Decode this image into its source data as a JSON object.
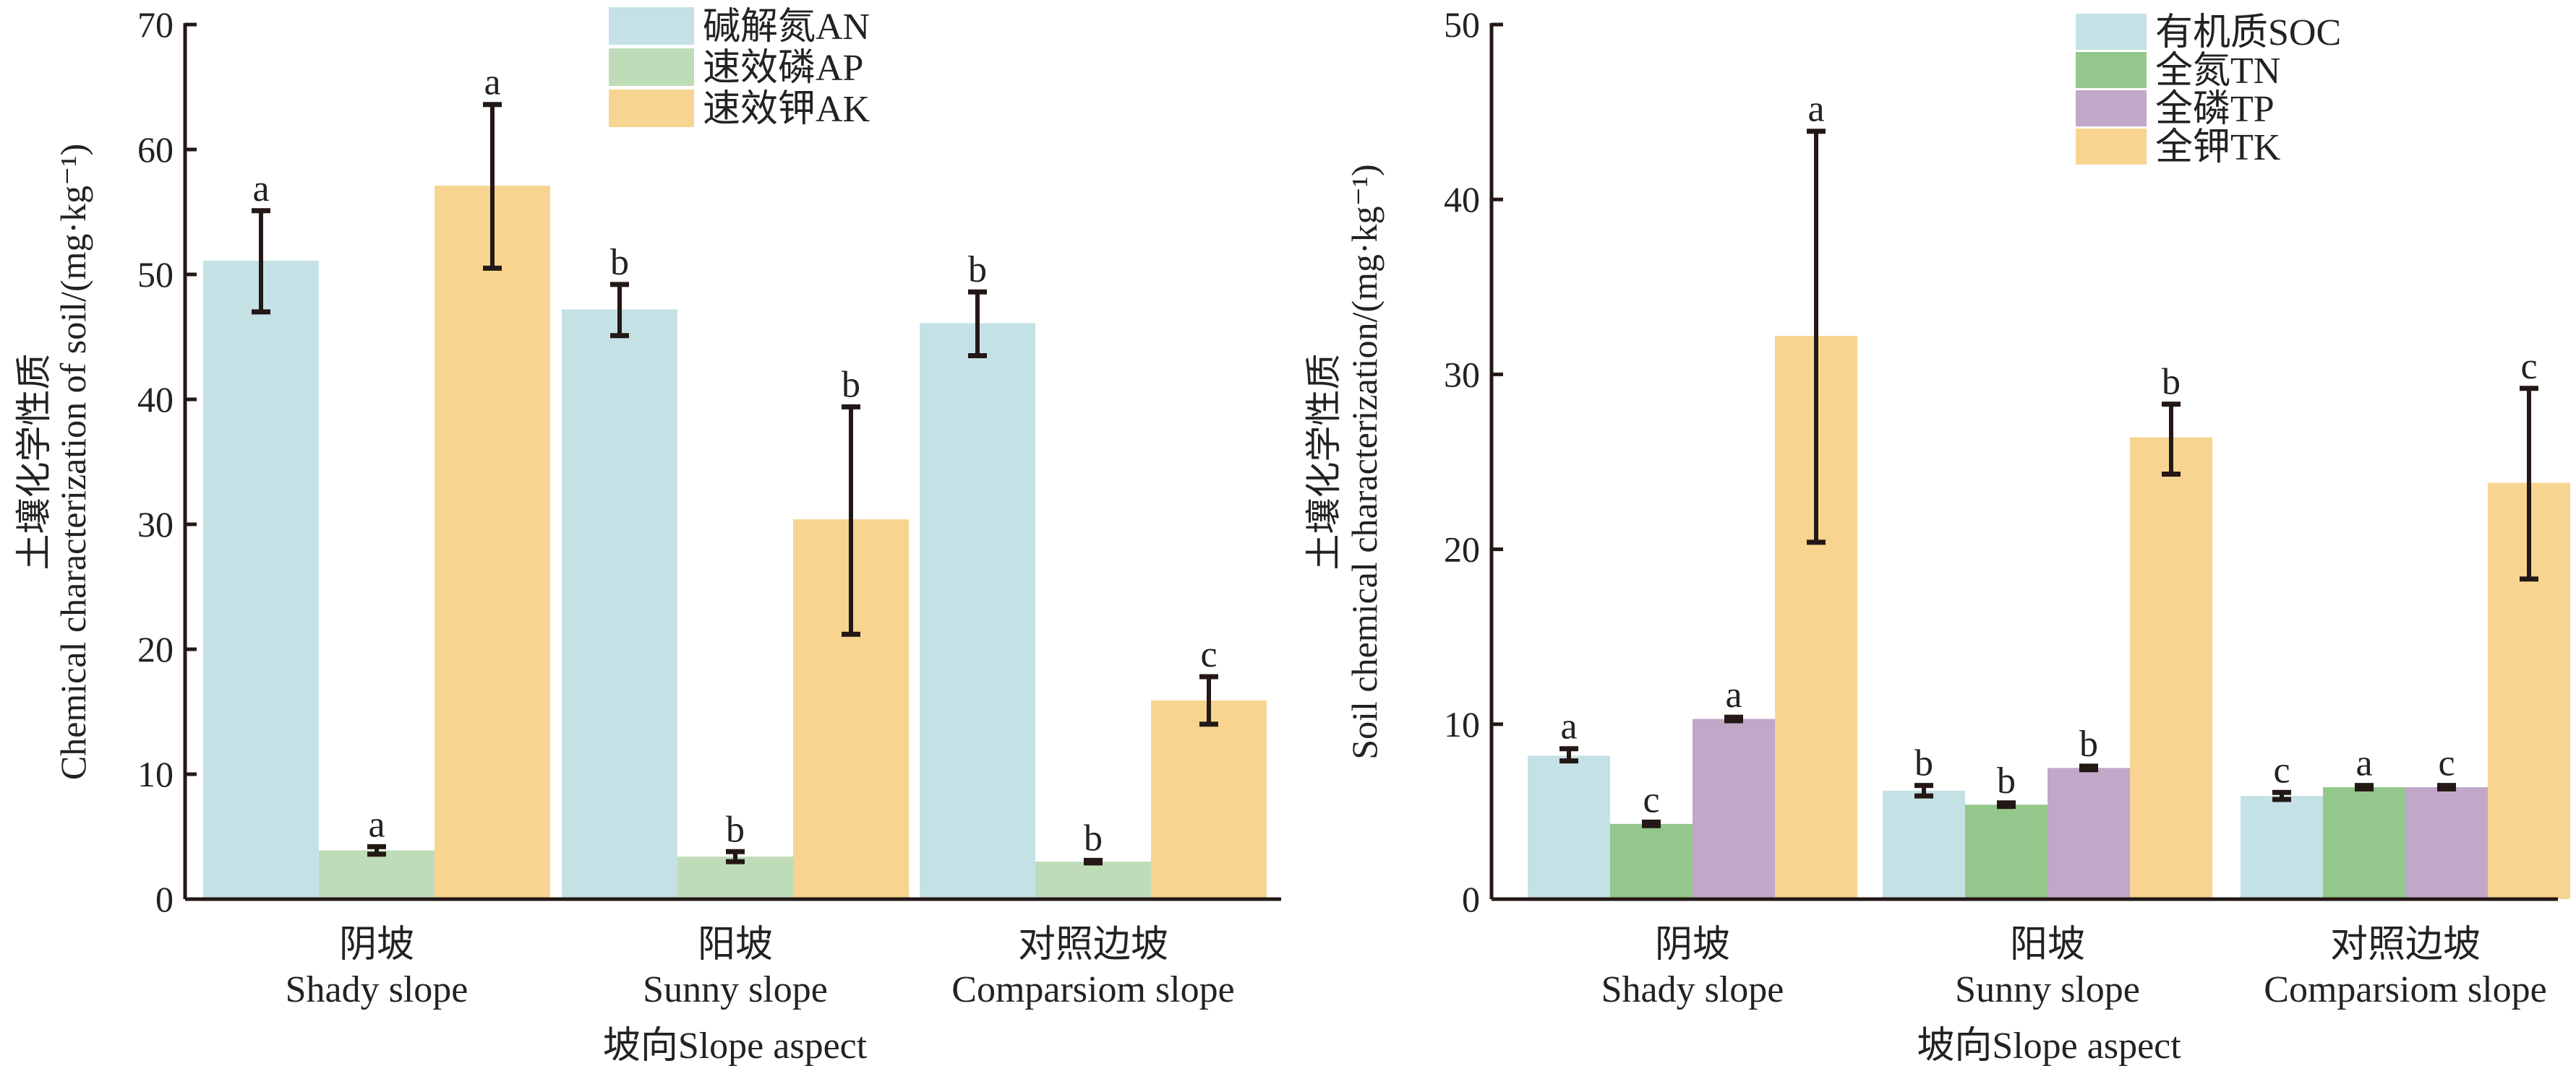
{
  "chart_data": [
    {
      "type": "bar",
      "ylabel_line1": "土壤化学性质",
      "ylabel_line2": "Chemical characterization of soil/(mg·kg⁻¹)",
      "xlabel": "坡向Slope aspect",
      "categories": [
        {
          "cn": "阴坡",
          "en": "Shady slope"
        },
        {
          "cn": "阳坡",
          "en": "Sunny slope"
        },
        {
          "cn": "对照边坡",
          "en": "Comparsiom slope"
        }
      ],
      "ylim": [
        0,
        70
      ],
      "yticks": [
        0,
        10,
        20,
        30,
        40,
        50,
        60,
        70
      ],
      "legend_position": "top-center",
      "series": [
        {
          "name": "碱解氮AN",
          "color": "#c4e2e5",
          "values": [
            51.1,
            47.2,
            46.1
          ],
          "err_low": [
            47.0,
            45.1,
            43.5
          ],
          "err_high": [
            55.1,
            49.2,
            48.6
          ],
          "letters": [
            "a",
            "b",
            "b"
          ]
        },
        {
          "name": "速效磷AP",
          "color": "#bfdcb9",
          "values": [
            3.9,
            3.4,
            3.0
          ],
          "err_low": [
            3.6,
            3.0,
            2.9
          ],
          "err_high": [
            4.2,
            3.8,
            3.1
          ],
          "letters": [
            "a",
            "b",
            "b"
          ]
        },
        {
          "name": "速效钾AK",
          "color": "#f7d590",
          "values": [
            57.1,
            30.4,
            15.9
          ],
          "err_low": [
            50.5,
            21.2,
            14.0
          ],
          "err_high": [
            63.6,
            39.4,
            17.8
          ],
          "letters": [
            "a",
            "b",
            "c"
          ]
        }
      ]
    },
    {
      "type": "bar",
      "ylabel_line1": "土壤化学性质",
      "ylabel_line2": "Soil chemical characterization/(mg·kg⁻¹)",
      "xlabel": "坡向Slope aspect",
      "categories": [
        {
          "cn": "阴坡",
          "en": "Shady slope"
        },
        {
          "cn": "阳坡",
          "en": "Sunny slope"
        },
        {
          "cn": "对照边坡",
          "en": "Comparsiom slope"
        }
      ],
      "ylim": [
        0,
        50
      ],
      "yticks": [
        0,
        10,
        20,
        30,
        40,
        50
      ],
      "legend_position": "top-right",
      "series": [
        {
          "name": "有机质SOC",
          "color": "#c4e2e5",
          "values": [
            8.2,
            6.2,
            5.9
          ],
          "err_low": [
            7.9,
            5.9,
            5.7
          ],
          "err_high": [
            8.6,
            6.5,
            6.1
          ],
          "letters": [
            "a",
            "b",
            "c"
          ]
        },
        {
          "name": "全氮TN",
          "color": "#94c78b",
          "values": [
            4.3,
            5.4,
            6.4
          ],
          "err_low": [
            4.2,
            5.3,
            6.3
          ],
          "err_high": [
            4.4,
            5.5,
            6.5
          ],
          "letters": [
            "c",
            "b",
            "a"
          ]
        },
        {
          "name": "全磷TP",
          "color": "#c1a7c8",
          "values": [
            10.3,
            7.5,
            6.4
          ],
          "err_low": [
            10.2,
            7.4,
            6.3
          ],
          "err_high": [
            10.4,
            7.6,
            6.5
          ],
          "letters": [
            "a",
            "b",
            "c"
          ]
        },
        {
          "name": "全钾TK",
          "color": "#f7d590",
          "values": [
            32.2,
            26.4,
            23.8
          ],
          "err_low": [
            20.4,
            24.3,
            18.3
          ],
          "err_high": [
            43.9,
            28.3,
            29.2
          ],
          "letters": [
            "a",
            "b",
            "c"
          ]
        }
      ]
    }
  ]
}
